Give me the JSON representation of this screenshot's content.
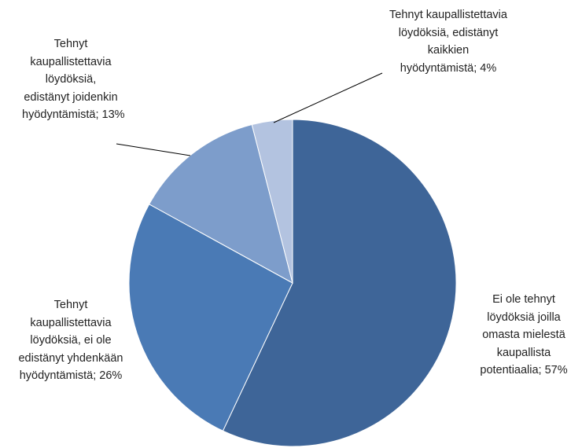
{
  "chart_data": {
    "type": "pie",
    "categories": [
      "Ei ole tehnyt löydöksiä joilla omasta mielestä kaupallista potentiaalia;",
      "Tehnyt kaupallistettavia löydöksiä, ei ole edistänyt yhdenkään hyödyntämistä;",
      "Tehnyt kaupallistettavia löydöksiä, edistänyt joidenkin hyödyntämistä;",
      "Tehnyt kaupallistettavia löydöksiä, edistänyt kaikkien hyödyntämistä;"
    ],
    "values": [
      57,
      26,
      13,
      4
    ],
    "value_labels": [
      "57%",
      "26%",
      "13%",
      "4%"
    ],
    "colors": [
      "#3e6598",
      "#4a7ab5",
      "#7d9dcb",
      "#b3c3e0"
    ]
  }
}
